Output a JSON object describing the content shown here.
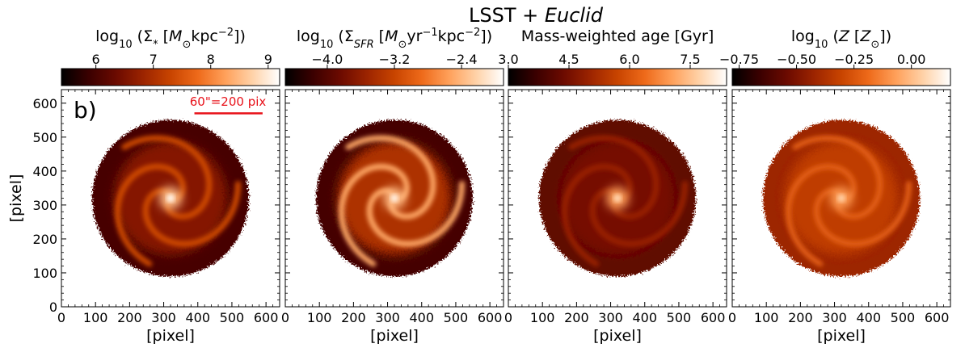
{
  "figure": {
    "title_main": "LSST + ",
    "title_italic": "Euclid",
    "panel_label": "b)",
    "scalebar_label": "60\"=200 pix",
    "colors": {
      "cmap": [
        "#000000",
        "#3a0000",
        "#6b0a00",
        "#9c2400",
        "#c84400",
        "#ee6a1a",
        "#ffa05a",
        "#ffd2a8",
        "#ffffff"
      ],
      "scalebar": "#e8121a",
      "axes": "#000000"
    }
  },
  "chart_data": [
    {
      "type": "heatmap",
      "xlabel": "[pixel]",
      "ylabel": "[pixel]",
      "xlim": [
        0,
        640
      ],
      "ylim": [
        0,
        640
      ],
      "xticks": [
        0,
        100,
        200,
        300,
        400,
        500,
        600
      ],
      "yticks": [
        0,
        100,
        200,
        300,
        400,
        500,
        600
      ],
      "colorbar": {
        "label_parts": [
          "log",
          "10",
          " (Σ",
          "*",
          " [",
          "M",
          "⊙",
          "kpc",
          "−2",
          "])"
        ],
        "range": [
          5.4,
          9.2
        ],
        "ticks": [
          6,
          7,
          8,
          9
        ]
      },
      "galaxy": {
        "center": [
          320,
          320
        ],
        "radius": 230,
        "bulge_value": 9.1,
        "arm_value": 7.4,
        "disk_value": 6.6,
        "edge_value": 6.0
      }
    },
    {
      "type": "heatmap",
      "xlabel": "[pixel]",
      "ylabel": "",
      "xlim": [
        0,
        640
      ],
      "ylim": [
        0,
        640
      ],
      "xticks": [
        0,
        100,
        200,
        300,
        400,
        500,
        600
      ],
      "yticks": [
        0,
        100,
        200,
        300,
        400,
        500,
        600
      ],
      "colorbar": {
        "label_parts": [
          "log",
          "10",
          " (Σ",
          "SFR",
          " [",
          "M",
          "⊙",
          "yr",
          "−1",
          "kpc",
          "−2",
          "])"
        ],
        "range": [
          -4.5,
          -1.9
        ],
        "ticks": [
          -4.0,
          -3.2,
          -2.4
        ],
        "tick_labels": [
          "−4.0",
          "−3.2",
          "−2.4"
        ]
      },
      "galaxy": {
        "center": [
          320,
          320
        ],
        "radius": 230,
        "bulge_value": -2.0,
        "arm_value": -2.5,
        "disk_value": -3.4,
        "edge_value": -4.1
      }
    },
    {
      "type": "heatmap",
      "xlabel": "[pixel]",
      "ylabel": "",
      "xlim": [
        0,
        640
      ],
      "ylim": [
        0,
        640
      ],
      "xticks": [
        0,
        100,
        200,
        300,
        400,
        500,
        600
      ],
      "yticks": [
        0,
        100,
        200,
        300,
        400,
        500,
        600
      ],
      "colorbar": {
        "label_parts": [
          "Mass-weighted age [Gyr]"
        ],
        "range": [
          3.0,
          8.4
        ],
        "ticks": [
          3.0,
          4.5,
          6.0,
          7.5
        ],
        "tick_labels": [
          "3.0",
          "4.5",
          "6.0",
          "7.5"
        ]
      },
      "galaxy": {
        "center": [
          320,
          320
        ],
        "radius": 230,
        "bulge_value": 7.8,
        "arm_value": 5.0,
        "disk_value": 4.5,
        "edge_value": 4.2
      }
    },
    {
      "type": "heatmap",
      "xlabel": "[pixel]",
      "ylabel": "",
      "xlim": [
        0,
        640
      ],
      "ylim": [
        0,
        640
      ],
      "xticks": [
        0,
        100,
        200,
        300,
        400,
        500,
        600
      ],
      "yticks": [
        0,
        100,
        200,
        300,
        400,
        500,
        600
      ],
      "colorbar": {
        "label_parts": [
          "log",
          "10",
          " (",
          "Z",
          " [",
          "Z",
          "⊙",
          "])"
        ],
        "range": [
          -0.78,
          0.17
        ],
        "ticks": [
          -0.75,
          -0.5,
          -0.25,
          0.0
        ],
        "tick_labels": [
          "−0.75",
          "−0.50",
          "−0.25",
          "0.00"
        ]
      },
      "galaxy": {
        "center": [
          320,
          320
        ],
        "radius": 230,
        "bulge_value": 0.05,
        "arm_value": -0.22,
        "disk_value": -0.33,
        "edge_value": -0.42
      }
    }
  ]
}
